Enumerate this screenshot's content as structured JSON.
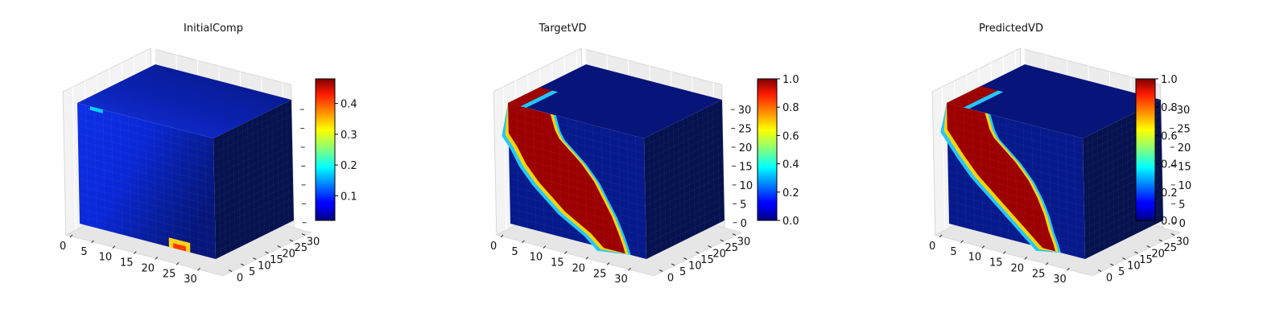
{
  "chart_data": [
    {
      "type": "voxel3d",
      "title": "InitialComp",
      "colormap": "jet",
      "axes": {
        "x": {
          "ticks": [
            0,
            5,
            10,
            15,
            20,
            25,
            30
          ],
          "range": [
            0,
            32
          ]
        },
        "y": {
          "ticks": [
            0,
            5,
            10,
            15,
            20,
            25,
            30
          ],
          "range": [
            0,
            32
          ]
        },
        "z": {
          "ticks": [],
          "range": [
            0,
            32
          ]
        }
      },
      "colorbar": {
        "range": [
          0.02,
          0.48
        ],
        "ticks": [
          0.1,
          0.2,
          0.3,
          0.4
        ],
        "tick_labels": [
          "0.1",
          "0.2",
          "0.3",
          "0.4"
        ]
      },
      "grid": true
    },
    {
      "type": "voxel3d",
      "title": "TargetVD",
      "colormap": "jet",
      "axes": {
        "x": {
          "ticks": [
            0,
            5,
            10,
            15,
            20,
            25,
            30
          ],
          "range": [
            0,
            32
          ]
        },
        "y": {
          "ticks": [
            0,
            5,
            10,
            15,
            20,
            25,
            30
          ],
          "range": [
            0,
            32
          ]
        },
        "z": {
          "ticks": [
            0,
            5,
            10,
            15,
            20,
            25,
            30
          ],
          "range": [
            0,
            32
          ]
        }
      },
      "colorbar": {
        "range": [
          0.0,
          1.0
        ],
        "ticks": [
          0.0,
          0.2,
          0.4,
          0.6,
          0.8,
          1.0
        ],
        "tick_labels": [
          "0.0",
          "0.2",
          "0.4",
          "0.6",
          "0.8",
          "1.0"
        ]
      },
      "grid": true
    },
    {
      "type": "voxel3d",
      "title": "PredictedVD",
      "colormap": "jet",
      "axes": {
        "x": {
          "ticks": [
            0,
            5,
            10,
            15,
            20,
            25,
            30
          ],
          "range": [
            0,
            32
          ]
        },
        "y": {
          "ticks": [
            0,
            5,
            10,
            15,
            20,
            25,
            30
          ],
          "range": [
            0,
            32
          ]
        },
        "z": {
          "ticks": [
            0,
            5,
            10,
            15,
            20,
            25,
            30
          ],
          "range": [
            0,
            32
          ]
        }
      },
      "colorbar": {
        "range": [
          0.0,
          1.0
        ],
        "ticks": [
          0.0,
          0.2,
          0.4,
          0.6,
          0.8,
          1.0
        ],
        "tick_labels": [
          "0.0",
          "0.2",
          "0.4",
          "0.6",
          "0.8",
          "1.0"
        ]
      },
      "grid": true
    }
  ]
}
